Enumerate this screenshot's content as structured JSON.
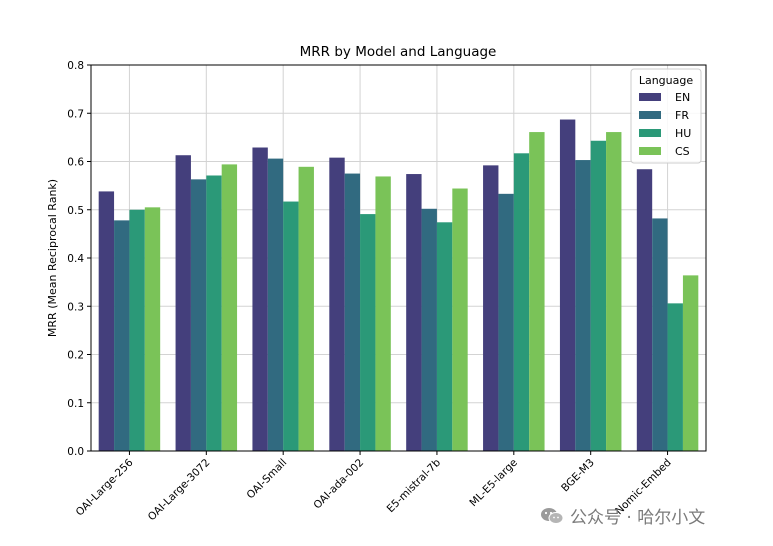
{
  "watermark": {
    "text": "公众号 · 哈尔小文"
  },
  "chart_data": {
    "type": "bar",
    "title": "MRR by Model and Language",
    "xlabel": "",
    "ylabel": "MRR  (Mean Reciprocal Rank)",
    "ylim": [
      0,
      0.8
    ],
    "yticks": [
      "0.0",
      "0.1",
      "0.2",
      "0.3",
      "0.4",
      "0.5",
      "0.6",
      "0.7",
      "0.8"
    ],
    "grid": true,
    "legend": {
      "title": "Language",
      "placement": "top-right"
    },
    "categories": [
      "OAI-Large-256",
      "OAI-Large-3072",
      "OAI-Small",
      "OAI-ada-002",
      "E5-mistral-7b",
      "ML-E5-large",
      "BGE-M3",
      "Nomic-Embed"
    ],
    "series": [
      {
        "name": "EN",
        "color": "#443f7c",
        "values": [
          0.538,
          0.613,
          0.629,
          0.608,
          0.574,
          0.592,
          0.687,
          0.584
        ]
      },
      {
        "name": "FR",
        "color": "#316a80",
        "values": [
          0.478,
          0.563,
          0.606,
          0.575,
          0.502,
          0.533,
          0.603,
          0.482
        ]
      },
      {
        "name": "HU",
        "color": "#2b9978",
        "values": [
          0.5,
          0.571,
          0.517,
          0.491,
          0.474,
          0.617,
          0.643,
          0.306
        ]
      },
      {
        "name": "CS",
        "color": "#7ac358",
        "values": [
          0.505,
          0.594,
          0.589,
          0.569,
          0.544,
          0.661,
          0.661,
          0.364
        ]
      }
    ]
  }
}
